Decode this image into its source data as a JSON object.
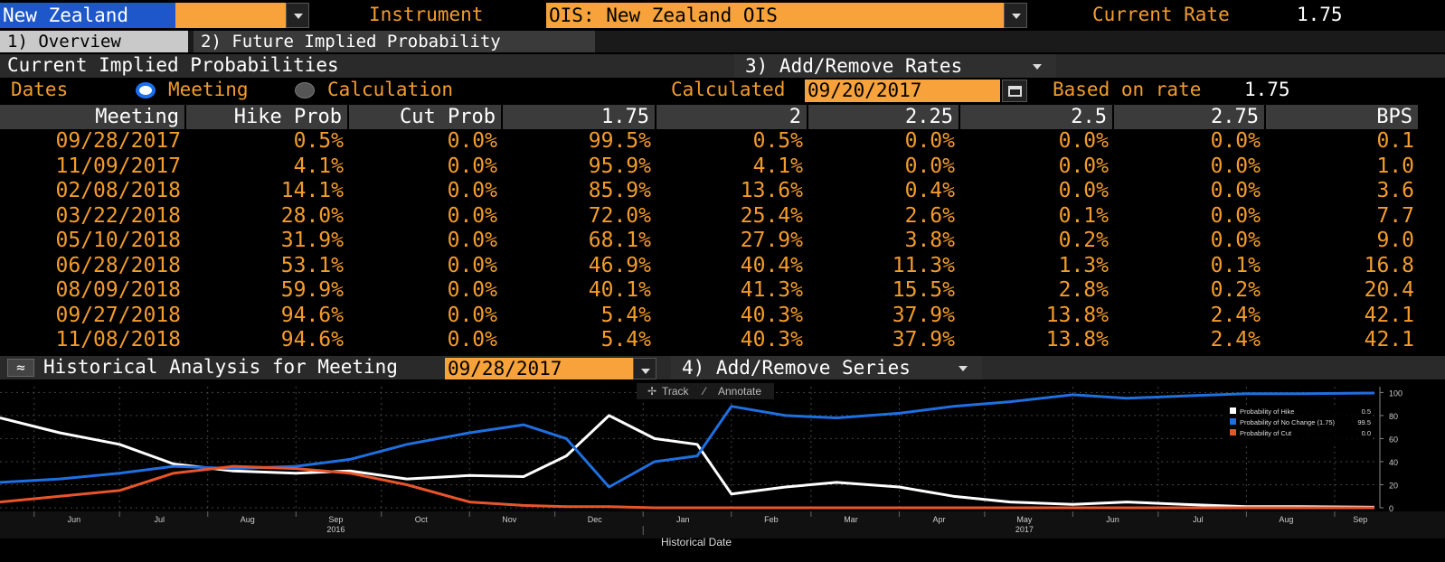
{
  "topbar": {
    "region_value": "New Zealand",
    "instrument_label": "Instrument",
    "instrument_value": "OIS: New Zealand OIS",
    "current_rate_label": "Current Rate",
    "current_rate_value": "1.75"
  },
  "tabs": [
    {
      "label": "1) Overview"
    },
    {
      "label": "2) Future Implied Probability"
    }
  ],
  "section": {
    "title": "Current Implied Probabilities",
    "add_remove_rates": "3) Add/Remove Rates",
    "dates_label": "Dates",
    "radio_meeting": "Meeting",
    "radio_calculation": "Calculation",
    "calculated_label": "Calculated",
    "calculated_value": "09/20/2017",
    "based_on_label": "Based on rate",
    "based_on_value": "1.75"
  },
  "table": {
    "headers": [
      "Meeting",
      "Hike Prob",
      "Cut Prob",
      "1.75",
      "2",
      "2.25",
      "2.5",
      "2.75",
      "BPS"
    ],
    "rows": [
      [
        "09/28/2017",
        "0.5%",
        "0.0%",
        "99.5%",
        "0.5%",
        "0.0%",
        "0.0%",
        "0.0%",
        "0.1"
      ],
      [
        "11/09/2017",
        "4.1%",
        "0.0%",
        "95.9%",
        "4.1%",
        "0.0%",
        "0.0%",
        "0.0%",
        "1.0"
      ],
      [
        "02/08/2018",
        "14.1%",
        "0.0%",
        "85.9%",
        "13.6%",
        "0.4%",
        "0.0%",
        "0.0%",
        "3.6"
      ],
      [
        "03/22/2018",
        "28.0%",
        "0.0%",
        "72.0%",
        "25.4%",
        "2.6%",
        "0.1%",
        "0.0%",
        "7.7"
      ],
      [
        "05/10/2018",
        "31.9%",
        "0.0%",
        "68.1%",
        "27.9%",
        "3.8%",
        "0.2%",
        "0.0%",
        "9.0"
      ],
      [
        "06/28/2018",
        "53.1%",
        "0.0%",
        "46.9%",
        "40.4%",
        "11.3%",
        "1.3%",
        "0.1%",
        "16.8"
      ],
      [
        "08/09/2018",
        "59.9%",
        "0.0%",
        "40.1%",
        "41.3%",
        "15.5%",
        "2.8%",
        "0.2%",
        "20.4"
      ],
      [
        "09/27/2018",
        "94.6%",
        "0.0%",
        "5.4%",
        "40.3%",
        "37.9%",
        "13.8%",
        "2.4%",
        "42.1"
      ],
      [
        "11/08/2018",
        "94.6%",
        "0.0%",
        "5.4%",
        "40.3%",
        "37.9%",
        "13.8%",
        "2.4%",
        "42.1"
      ]
    ]
  },
  "historical": {
    "title": "Historical Analysis for Meeting",
    "meeting_value": "09/28/2017",
    "add_remove_series": "4) Add/Remove Series",
    "track_label": "Track",
    "annotate_label": "Annotate"
  },
  "colors": {
    "accent": "#f39c2b",
    "hike": "#ffffff",
    "no_change": "#1f6fe0",
    "cut": "#e8552b"
  },
  "chart_data": {
    "type": "line",
    "xlabel": "Historical Date",
    "x_ticks": [
      "Jun",
      "Jul",
      "Aug",
      "Sep",
      "Oct",
      "Nov",
      "Dec",
      "Jan",
      "Feb",
      "Mar",
      "Apr",
      "May",
      "Jun",
      "Jul",
      "Aug",
      "Sep"
    ],
    "year_labels": [
      "2016",
      "2017"
    ],
    "y_ticks": [
      0,
      20,
      40,
      60,
      80,
      100
    ],
    "ylim": [
      0,
      105
    ],
    "legend": [
      {
        "name": "Probability of Hike",
        "value": "0.5"
      },
      {
        "name": "Probability of No Change (1.75)",
        "value": "99.5"
      },
      {
        "name": "Probability of Cut",
        "value": "0.0"
      }
    ],
    "x": [
      "2016-05-20",
      "2016-06-10",
      "2016-07-01",
      "2016-07-20",
      "2016-08-10",
      "2016-09-01",
      "2016-09-20",
      "2016-10-10",
      "2016-11-01",
      "2016-11-20",
      "2016-12-05",
      "2016-12-20",
      "2017-01-05",
      "2017-01-20",
      "2017-02-01",
      "2017-02-20",
      "2017-03-10",
      "2017-04-01",
      "2017-04-20",
      "2017-05-10",
      "2017-06-01",
      "2017-06-20",
      "2017-07-10",
      "2017-08-01",
      "2017-08-20",
      "2017-09-15"
    ],
    "series": [
      {
        "name": "Probability of Hike",
        "values": [
          78,
          65,
          55,
          38,
          32,
          30,
          32,
          25,
          28,
          27,
          45,
          80,
          60,
          55,
          12,
          18,
          22,
          18,
          10,
          5,
          3,
          5,
          3,
          1,
          1,
          0.5
        ]
      },
      {
        "name": "Probability of No Change (1.75)",
        "values": [
          22,
          25,
          30,
          36,
          34,
          36,
          42,
          55,
          65,
          72,
          60,
          18,
          40,
          45,
          88,
          80,
          78,
          82,
          88,
          92,
          98,
          95,
          97,
          99,
          99,
          99.5
        ]
      },
      {
        "name": "Probability of Cut",
        "values": [
          5,
          10,
          15,
          30,
          36,
          34,
          30,
          20,
          5,
          2,
          1,
          1,
          0,
          0,
          0,
          0,
          0,
          0,
          0,
          0,
          0,
          0,
          0,
          0,
          0,
          0
        ]
      }
    ]
  }
}
